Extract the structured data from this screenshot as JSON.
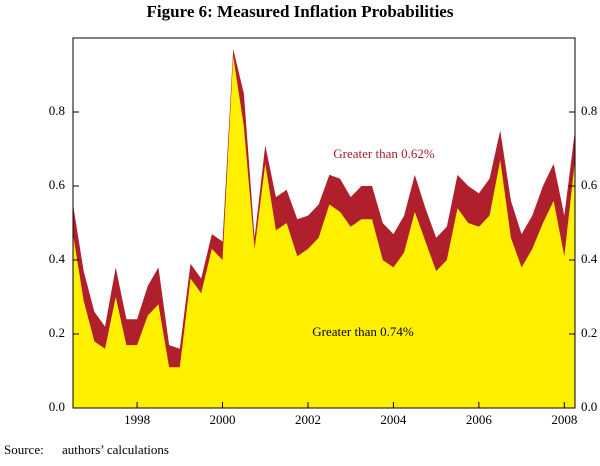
{
  "chart_data": {
    "type": "area",
    "title": "Figure 6: Measured Inflation Probabilities",
    "x": [
      1996.5,
      1996.75,
      1997,
      1997.25,
      1997.5,
      1997.75,
      1998,
      1998.25,
      1998.5,
      1998.75,
      1999,
      1999.25,
      1999.5,
      1999.75,
      2000,
      2000.25,
      2000.5,
      2000.75,
      2001,
      2001.25,
      2001.5,
      2001.75,
      2002,
      2002.25,
      2002.5,
      2002.75,
      2003,
      2003.25,
      2003.5,
      2003.75,
      2004,
      2004.25,
      2004.5,
      2004.75,
      2005,
      2005.25,
      2005.5,
      2005.75,
      2006,
      2006.25,
      2006.5,
      2006.75,
      2007,
      2007.25,
      2007.5,
      2007.75,
      2008,
      2008.25
    ],
    "series": [
      {
        "name": "Greater than 0.62%",
        "color": "#b0202c",
        "text_color": "#a01e2a",
        "values": [
          0.55,
          0.37,
          0.26,
          0.22,
          0.38,
          0.24,
          0.24,
          0.33,
          0.38,
          0.17,
          0.16,
          0.39,
          0.35,
          0.47,
          0.45,
          0.97,
          0.85,
          0.46,
          0.71,
          0.57,
          0.59,
          0.51,
          0.52,
          0.55,
          0.63,
          0.62,
          0.57,
          0.6,
          0.6,
          0.5,
          0.47,
          0.52,
          0.63,
          0.54,
          0.46,
          0.49,
          0.63,
          0.6,
          0.58,
          0.62,
          0.75,
          0.56,
          0.47,
          0.52,
          0.6,
          0.66,
          0.52,
          0.75
        ]
      },
      {
        "name": "Greater than 0.74%",
        "color": "#fff000",
        "text_color": "#000000",
        "values": [
          0.47,
          0.29,
          0.18,
          0.16,
          0.3,
          0.17,
          0.17,
          0.25,
          0.28,
          0.11,
          0.11,
          0.35,
          0.31,
          0.43,
          0.4,
          0.95,
          0.76,
          0.43,
          0.66,
          0.48,
          0.5,
          0.41,
          0.43,
          0.46,
          0.55,
          0.53,
          0.49,
          0.51,
          0.51,
          0.4,
          0.38,
          0.42,
          0.53,
          0.45,
          0.37,
          0.4,
          0.54,
          0.5,
          0.49,
          0.52,
          0.67,
          0.46,
          0.38,
          0.43,
          0.5,
          0.56,
          0.41,
          0.67
        ]
      }
    ],
    "xlim": [
      1996.5,
      2008.25
    ],
    "xticks": [
      1998,
      2000,
      2002,
      2004,
      2006,
      2008
    ],
    "ylim": [
      0,
      1
    ],
    "yticks": [
      {
        "value": 0,
        "label": "0.0"
      },
      0.2,
      0.4,
      0.6,
      0.8
    ],
    "source_label": "Source:",
    "source_text": "authors’ calculations"
  }
}
